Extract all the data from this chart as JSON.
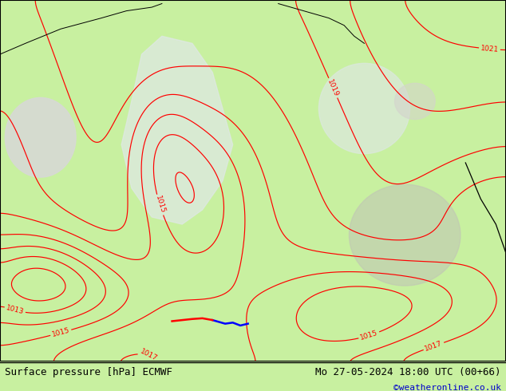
{
  "title_left": "Surface pressure [hPa] ECMWF",
  "title_right": "Mo 27-05-2024 18:00 UTC (00+66)",
  "credit": "©weatheronline.co.uk",
  "bg_color": "#c8f0a0",
  "border_color": "#000000",
  "text_color": "#000000",
  "credit_color": "#0000cc",
  "bottom_bar_color": "#c8f0a0",
  "fig_width": 6.34,
  "fig_height": 4.9,
  "dpi": 100,
  "font_size_bottom": 9,
  "font_size_credit": 8,
  "contour_color_red": "#ff0000",
  "contour_color_black": "#000000"
}
